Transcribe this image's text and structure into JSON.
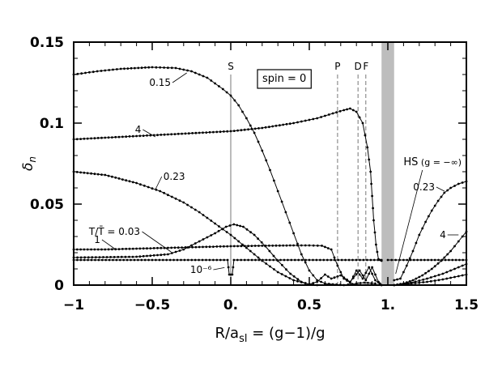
{
  "chart_data": {
    "type": "line",
    "xlabel": "R/a_sl = (g−1)/g",
    "xlabel_parts": {
      "main": "R/a",
      "sub": "sl",
      "rest": " = (g−1)/g"
    },
    "ylabel": "δ_n",
    "ylabel_parts": {
      "main": "δ",
      "sub": "n"
    },
    "xlim": [
      -1,
      1.5
    ],
    "ylim": [
      0,
      0.15
    ],
    "xticks": [
      {
        "value": -1,
        "label": "−1"
      },
      {
        "value": -0.5,
        "label": "−0.5"
      },
      {
        "value": 0,
        "label": "0."
      },
      {
        "value": 0.5,
        "label": "0.5"
      },
      {
        "value": 1,
        "label": "1."
      },
      {
        "value": 1.5,
        "label": "1.5"
      }
    ],
    "yticks": [
      {
        "value": 0,
        "label": "0"
      },
      {
        "value": 0.05,
        "label": "0.05"
      },
      {
        "value": 0.1,
        "label": "0.1"
      },
      {
        "value": 0.15,
        "label": "0.15"
      }
    ],
    "grid": false,
    "spin_label": "spin = 0",
    "shaded_band": {
      "x": [
        0.96,
        1.04
      ],
      "color": "#bdbdbd"
    },
    "vertical_markers": [
      {
        "x": 0.0,
        "label": "S",
        "style": "solid"
      },
      {
        "x": 0.68,
        "label": "P",
        "style": "dashed"
      },
      {
        "x": 0.81,
        "label": "D",
        "style": "dashed"
      },
      {
        "x": 0.86,
        "label": "F",
        "style": "dashed"
      }
    ],
    "series": [
      {
        "name": "0.15",
        "label_pos": [
          -0.45,
          0.123
        ],
        "arrow_to": [
          -0.28,
          0.131
        ],
        "points": [
          [
            -1,
            0.13
          ],
          [
            -0.85,
            0.132
          ],
          [
            -0.7,
            0.1335
          ],
          [
            -0.5,
            0.1345
          ],
          [
            -0.35,
            0.134
          ],
          [
            -0.25,
            0.132
          ],
          [
            -0.15,
            0.128
          ],
          [
            -0.05,
            0.121
          ],
          [
            0,
            0.117
          ],
          [
            0.05,
            0.111
          ],
          [
            0.1,
            0.103
          ],
          [
            0.15,
            0.094
          ],
          [
            0.2,
            0.083
          ],
          [
            0.25,
            0.071
          ],
          [
            0.3,
            0.058
          ],
          [
            0.35,
            0.045
          ],
          [
            0.4,
            0.032
          ],
          [
            0.45,
            0.019
          ],
          [
            0.5,
            0.009
          ],
          [
            0.55,
            0.003
          ],
          [
            0.6,
            0.001
          ],
          [
            0.65,
            0.0005
          ],
          [
            0.72,
            0.0
          ],
          [
            0.8,
            0.001
          ],
          [
            0.85,
            0.0015
          ],
          [
            0.92,
            0.001
          ]
        ]
      },
      {
        "name": "4",
        "label_pos": [
          -0.59,
          0.094
        ],
        "arrow_to": [
          -0.48,
          0.0915
        ],
        "points": [
          [
            -1,
            0.09
          ],
          [
            -0.8,
            0.091
          ],
          [
            -0.6,
            0.092
          ],
          [
            -0.4,
            0.093
          ],
          [
            -0.2,
            0.094
          ],
          [
            0,
            0.095
          ],
          [
            0.2,
            0.097
          ],
          [
            0.4,
            0.1
          ],
          [
            0.55,
            0.103
          ],
          [
            0.65,
            0.106
          ],
          [
            0.72,
            0.108
          ],
          [
            0.76,
            0.109
          ],
          [
            0.8,
            0.107
          ],
          [
            0.84,
            0.1
          ],
          [
            0.87,
            0.085
          ],
          [
            0.89,
            0.07
          ],
          [
            0.9,
            0.055
          ],
          [
            0.91,
            0.04
          ],
          [
            0.925,
            0.025
          ],
          [
            0.94,
            0.016
          ],
          [
            0.96,
            0.015
          ]
        ]
      },
      {
        "name": "0.23",
        "label_pos": [
          -0.36,
          0.065
        ],
        "arrow_to": [
          -0.48,
          0.059
        ],
        "points": [
          [
            -1,
            0.07
          ],
          [
            -0.8,
            0.068
          ],
          [
            -0.6,
            0.063
          ],
          [
            -0.45,
            0.058
          ],
          [
            -0.3,
            0.051
          ],
          [
            -0.2,
            0.045
          ],
          [
            -0.1,
            0.038
          ],
          [
            0,
            0.031
          ],
          [
            0.1,
            0.023
          ],
          [
            0.2,
            0.015
          ],
          [
            0.3,
            0.008
          ],
          [
            0.4,
            0.003
          ],
          [
            0.5,
            0.0005
          ],
          [
            0.55,
            0.0
          ]
        ]
      },
      {
        "name": "T/T̄ = 0.03",
        "label_pos": [
          -0.74,
          0.031
        ],
        "arrow_to": [
          -0.38,
          0.0205
        ],
        "points": [
          [
            -1,
            0.017
          ],
          [
            -0.6,
            0.0175
          ],
          [
            -0.4,
            0.019
          ],
          [
            -0.3,
            0.022
          ],
          [
            -0.2,
            0.027
          ],
          [
            -0.1,
            0.032
          ],
          [
            -0.03,
            0.036
          ],
          [
            0.02,
            0.0375
          ],
          [
            0.08,
            0.036
          ],
          [
            0.15,
            0.031
          ],
          [
            0.22,
            0.024
          ],
          [
            0.3,
            0.015
          ],
          [
            0.38,
            0.007
          ],
          [
            0.45,
            0.002
          ],
          [
            0.5,
            0.0005
          ],
          [
            0.55,
            0.002
          ],
          [
            0.6,
            0.0065
          ],
          [
            0.64,
            0.004
          ],
          [
            0.7,
            0.006
          ],
          [
            0.76,
            0.002
          ],
          [
            0.82,
            0.009
          ],
          [
            0.86,
            0.003
          ],
          [
            0.9,
            0.011
          ],
          [
            0.94,
            0.002
          ],
          [
            0.96,
            0.0
          ]
        ]
      },
      {
        "name": "1",
        "label_pos": [
          -0.85,
          0.026
        ],
        "arrow_to": [
          -0.74,
          0.0225
        ],
        "points": [
          [
            -1,
            0.022
          ],
          [
            -0.8,
            0.022
          ],
          [
            -0.6,
            0.0225
          ],
          [
            -0.4,
            0.023
          ],
          [
            -0.2,
            0.0235
          ],
          [
            0,
            0.024
          ],
          [
            0.2,
            0.0243
          ],
          [
            0.4,
            0.0245
          ],
          [
            0.5,
            0.0245
          ],
          [
            0.58,
            0.0243
          ],
          [
            0.64,
            0.022
          ],
          [
            0.68,
            0.012
          ],
          [
            0.72,
            0.004
          ],
          [
            0.76,
            0.0015
          ],
          [
            0.8,
            0.009
          ],
          [
            0.84,
            0.004
          ],
          [
            0.88,
            0.011
          ],
          [
            0.92,
            0.003
          ],
          [
            0.96,
            0.0
          ]
        ]
      },
      {
        "name": "10⁻⁶",
        "label_pos": [
          -0.19,
          0.0075
        ],
        "arrow_to": [
          -0.04,
          0.0108
        ],
        "points": [
          [
            -1,
            0.0155
          ],
          [
            -0.5,
            0.0155
          ],
          [
            -0.02,
            0.0155
          ],
          [
            -0.01,
            0.0065
          ],
          [
            0.01,
            0.0065
          ],
          [
            0.02,
            0.0155
          ],
          [
            0.5,
            0.0155
          ],
          [
            0.96,
            0.0155
          ]
        ]
      },
      {
        "name": "0.23",
        "label_pos": [
          1.23,
          0.0585
        ],
        "arrow_to": [
          1.36,
          0.058
        ],
        "points": [
          [
            1.04,
            0.003
          ],
          [
            1.08,
            0.004
          ],
          [
            1.12,
            0.012
          ],
          [
            1.16,
            0.021
          ],
          [
            1.2,
            0.031
          ],
          [
            1.24,
            0.039
          ],
          [
            1.28,
            0.046
          ],
          [
            1.32,
            0.052
          ],
          [
            1.36,
            0.057
          ],
          [
            1.4,
            0.06
          ],
          [
            1.45,
            0.0625
          ],
          [
            1.5,
            0.064
          ]
        ]
      },
      {
        "name": "4",
        "label_pos": [
          1.35,
          0.029
        ],
        "arrow_to": [
          1.45,
          0.031
        ],
        "points": [
          [
            1.04,
            0.0
          ],
          [
            1.1,
            0.001
          ],
          [
            1.16,
            0.003
          ],
          [
            1.22,
            0.006
          ],
          [
            1.28,
            0.01
          ],
          [
            1.34,
            0.015
          ],
          [
            1.4,
            0.021
          ],
          [
            1.45,
            0.027
          ],
          [
            1.5,
            0.033
          ]
        ]
      },
      {
        "name": "",
        "points": [
          [
            1.04,
            0.0
          ],
          [
            1.15,
            0.0015
          ],
          [
            1.25,
            0.004
          ],
          [
            1.35,
            0.007
          ],
          [
            1.45,
            0.011
          ],
          [
            1.5,
            0.013
          ]
        ]
      },
      {
        "name": "",
        "points": [
          [
            1.04,
            0.0
          ],
          [
            1.15,
            0.001
          ],
          [
            1.25,
            0.002
          ],
          [
            1.35,
            0.0035
          ],
          [
            1.45,
            0.0055
          ],
          [
            1.5,
            0.0065
          ]
        ]
      },
      {
        "name": "",
        "points": [
          [
            1.0,
            0.0155
          ],
          [
            1.1,
            0.0155
          ],
          [
            1.3,
            0.0155
          ],
          [
            1.5,
            0.0155
          ]
        ]
      }
    ],
    "hs_label": "HS",
    "hs_rest": " (g = −∞)",
    "hs_label_pos": [
      1.1,
      0.074
    ],
    "hs_arrow_from": [
      1.22,
      0.071
    ],
    "hs_arrow_to": [
      1.05,
      0.007
    ]
  }
}
